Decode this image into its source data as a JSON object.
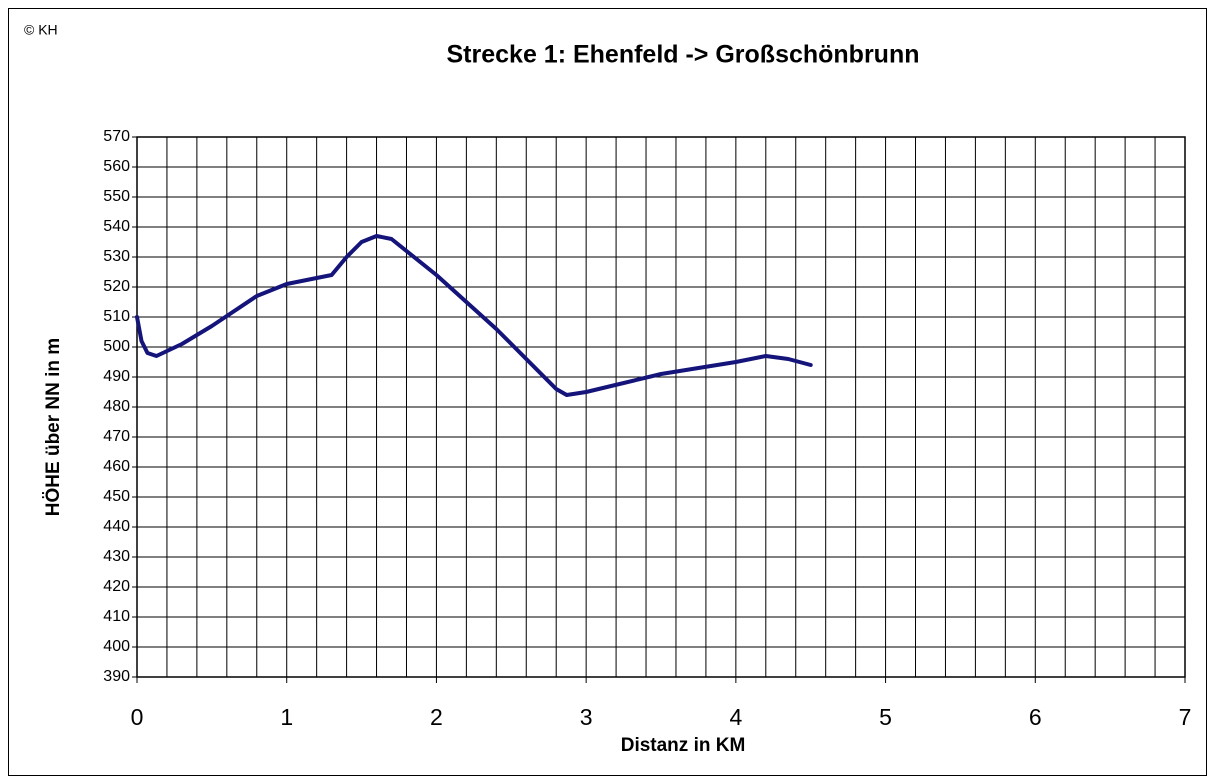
{
  "chart_data": {
    "type": "line",
    "corner_note": "© KH",
    "title": "Strecke 1: Ehenfeld -> Großschönbrunn",
    "x_label": "Distanz in KM",
    "y_label": "HÖHE über NN in m",
    "x": [
      0,
      0.03,
      0.07,
      0.13,
      0.3,
      0.5,
      0.8,
      1.0,
      1.2,
      1.3,
      1.4,
      1.5,
      1.6,
      1.7,
      2.0,
      2.4,
      2.8,
      2.87,
      3.0,
      3.5,
      4.0,
      4.2,
      4.35,
      4.5
    ],
    "series": [
      {
        "name": "Höhe",
        "color": "#14147a",
        "values": [
          510,
          502,
          498,
          497,
          501,
          507,
          517,
          521,
          523,
          524,
          530,
          535,
          537,
          536,
          524,
          506,
          486,
          484,
          485,
          491,
          495,
          497,
          496,
          494
        ]
      }
    ],
    "xlim": [
      0,
      7
    ],
    "xticks": [
      0,
      1,
      2,
      3,
      4,
      5,
      6,
      7
    ],
    "x_grid_step": 0.2,
    "ylim": [
      390,
      570
    ],
    "yticks": [
      390,
      400,
      410,
      420,
      430,
      440,
      450,
      460,
      470,
      480,
      490,
      500,
      510,
      520,
      530,
      540,
      550,
      560,
      570
    ],
    "grid": true
  }
}
